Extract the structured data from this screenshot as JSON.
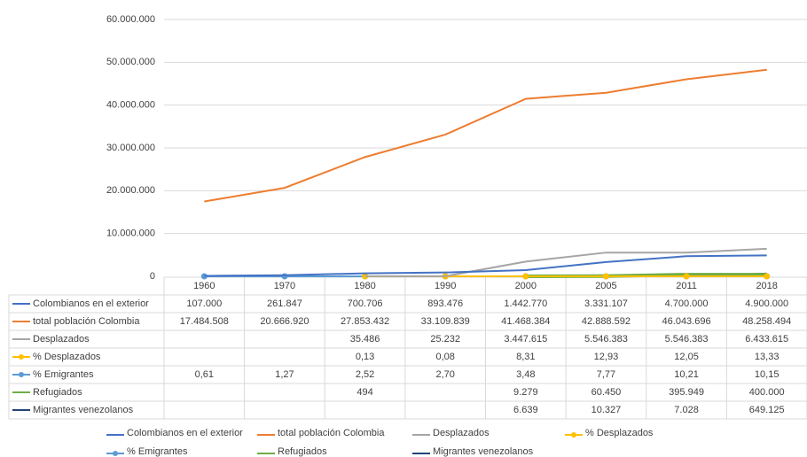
{
  "chart_data": {
    "type": "line",
    "categories": [
      "1960",
      "1970",
      "1980",
      "1990",
      "2000",
      "2005",
      "2011",
      "2018"
    ],
    "ylim": [
      0,
      60000000
    ],
    "yticks": [
      0,
      {
        "value": 10000000,
        "label": "10.000.000"
      },
      {
        "value": 20000000,
        "label": "20.000.000"
      },
      {
        "value": 30000000,
        "label": "30.000.000"
      },
      {
        "value": 40000000,
        "label": "40.000.000"
      },
      {
        "value": 50000000,
        "label": "50.000.000"
      },
      {
        "value": 60000000,
        "label": "60.000.000"
      }
    ],
    "grid": true,
    "legend": "bottom",
    "series": [
      {
        "name": "Colombianos en el exterior",
        "color": "#4472c4",
        "values": [
          107000,
          261847,
          700706,
          893476,
          1442770,
          3331107,
          4700000,
          4900000
        ],
        "value_labels": [
          "107.000",
          "261.847",
          "700.706",
          "893.476",
          "1.442.770",
          "3.331.107",
          "4.700.000",
          "4.900.000"
        ]
      },
      {
        "name": "total población Colombia",
        "color": "#ed7d31",
        "values": [
          17484508,
          20666920,
          27853432,
          33109839,
          41468384,
          42888592,
          46043696,
          48258494
        ],
        "value_labels": [
          "17.484.508",
          "20.666.920",
          "27.853.432",
          "33.109.839",
          "41.468.384",
          "42.888.592",
          "46.043.696",
          "48.258.494"
        ]
      },
      {
        "name": "Desplazados",
        "color": "#a5a5a5",
        "values": [
          null,
          null,
          35486,
          25232,
          3447615,
          5546383,
          5546383,
          6433615
        ],
        "value_labels": [
          null,
          null,
          "35.486",
          "25.232",
          "3.447.615",
          "5.546.383",
          "5.546.383",
          "6.433.615"
        ]
      },
      {
        "name": "% Desplazados",
        "color": "#ffc000",
        "marker": true,
        "values": [
          null,
          null,
          0.13,
          0.08,
          8.31,
          12.93,
          12.05,
          13.33
        ],
        "value_labels": [
          null,
          null,
          "0,13",
          "0,08",
          "8,31",
          "12,93",
          "12,05",
          "13,33"
        ]
      },
      {
        "name": "% Emigrantes",
        "color": "#5b9bd5",
        "marker": true,
        "values": [
          0.61,
          1.27,
          2.52,
          2.7,
          3.48,
          7.77,
          10.21,
          10.15
        ],
        "value_labels": [
          "0,61",
          "1,27",
          "2,52",
          "2,70",
          "3,48",
          "7,77",
          "10,21",
          "10,15"
        ]
      },
      {
        "name": "Refugiados",
        "color": "#70ad47",
        "values": [
          null,
          null,
          494,
          null,
          9279,
          60450,
          395949,
          400000
        ],
        "value_labels": [
          null,
          null,
          "494",
          null,
          "9.279",
          "60.450",
          "395.949",
          "400.000"
        ]
      },
      {
        "name": "Migrantes venezolanos",
        "color": "#264478",
        "values": [
          null,
          null,
          null,
          null,
          6639,
          10327,
          7028,
          649125
        ],
        "value_labels": [
          null,
          null,
          null,
          null,
          "6.639",
          "10.327",
          "7.028",
          "649.125"
        ]
      }
    ]
  }
}
